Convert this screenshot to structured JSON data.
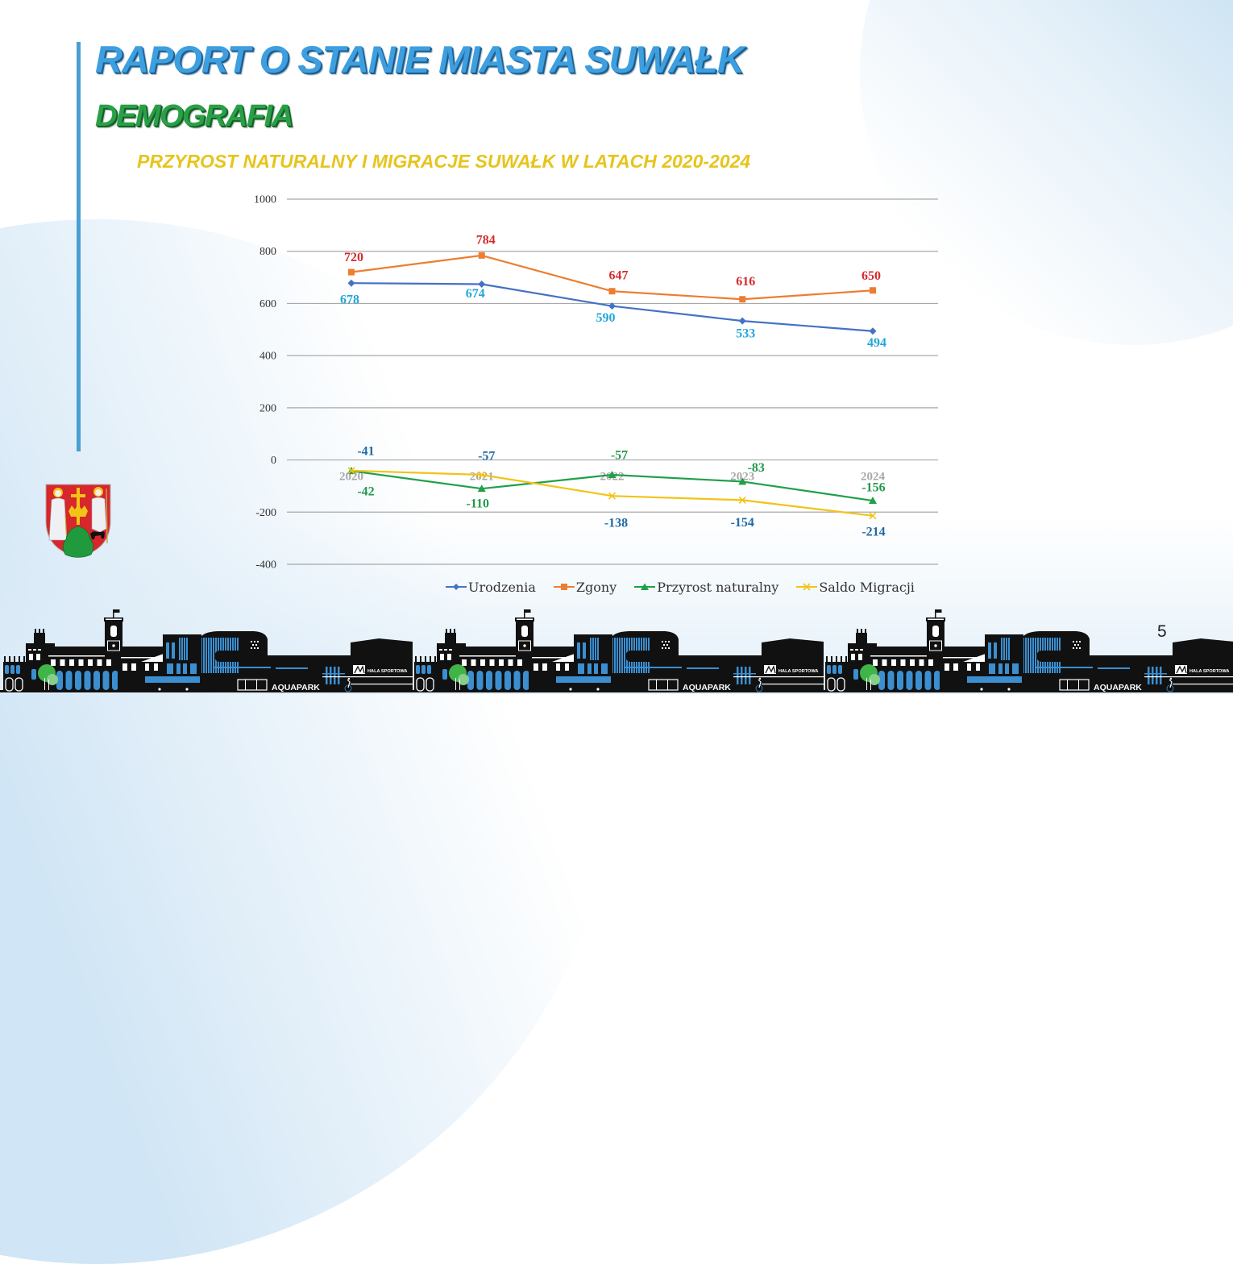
{
  "slide": {
    "title": "RAPORT O STANIE MIASTA SUWAŁK",
    "section": "DEMOGRAFIA",
    "page_number": "5",
    "colors": {
      "title": "#3d9fe0",
      "section": "#2aa046",
      "chart_title": "#e7c41b",
      "accent_bar": "#4a9fd2"
    }
  },
  "emblem": {
    "name": "coat-of-arms-suwalki"
  },
  "skyline": {
    "aquapark_label": "AQUAPARK",
    "hala_label": "HALA SPORTOWA"
  },
  "chart_data": {
    "type": "line",
    "title": "PRZYROST NATURALNY I MIGRACJE SUWAŁK W LATACH 2020-2024",
    "xlabel": "",
    "ylabel": "",
    "categories": [
      "2020",
      "2021",
      "2022",
      "2023",
      "2024"
    ],
    "yticks": [
      -400,
      -200,
      0,
      200,
      400,
      600,
      800,
      1000
    ],
    "ylim": [
      -400,
      1000
    ],
    "grid": true,
    "legend": "bottom",
    "series": [
      {
        "name": "Urodzenia",
        "values": [
          678,
          674,
          590,
          533,
          494
        ],
        "color": "#4472c4",
        "label_color": "#22a6d8",
        "marker": "diamond"
      },
      {
        "name": "Zgony",
        "values": [
          720,
          784,
          647,
          616,
          650
        ],
        "color": "#ed7d31",
        "label_color": "#d42b2b",
        "marker": "square"
      },
      {
        "name": "Przyrost naturalny",
        "values": [
          -42,
          -110,
          -57,
          -83,
          -156
        ],
        "color": "#1fa049",
        "label_color": "#21994a",
        "marker": "triangle"
      },
      {
        "name": "Saldo Migracji",
        "values": [
          -41,
          -57,
          -138,
          -154,
          -214
        ],
        "color": "#f2c318",
        "label_color": "#1f6aa5",
        "marker": "x"
      }
    ]
  }
}
